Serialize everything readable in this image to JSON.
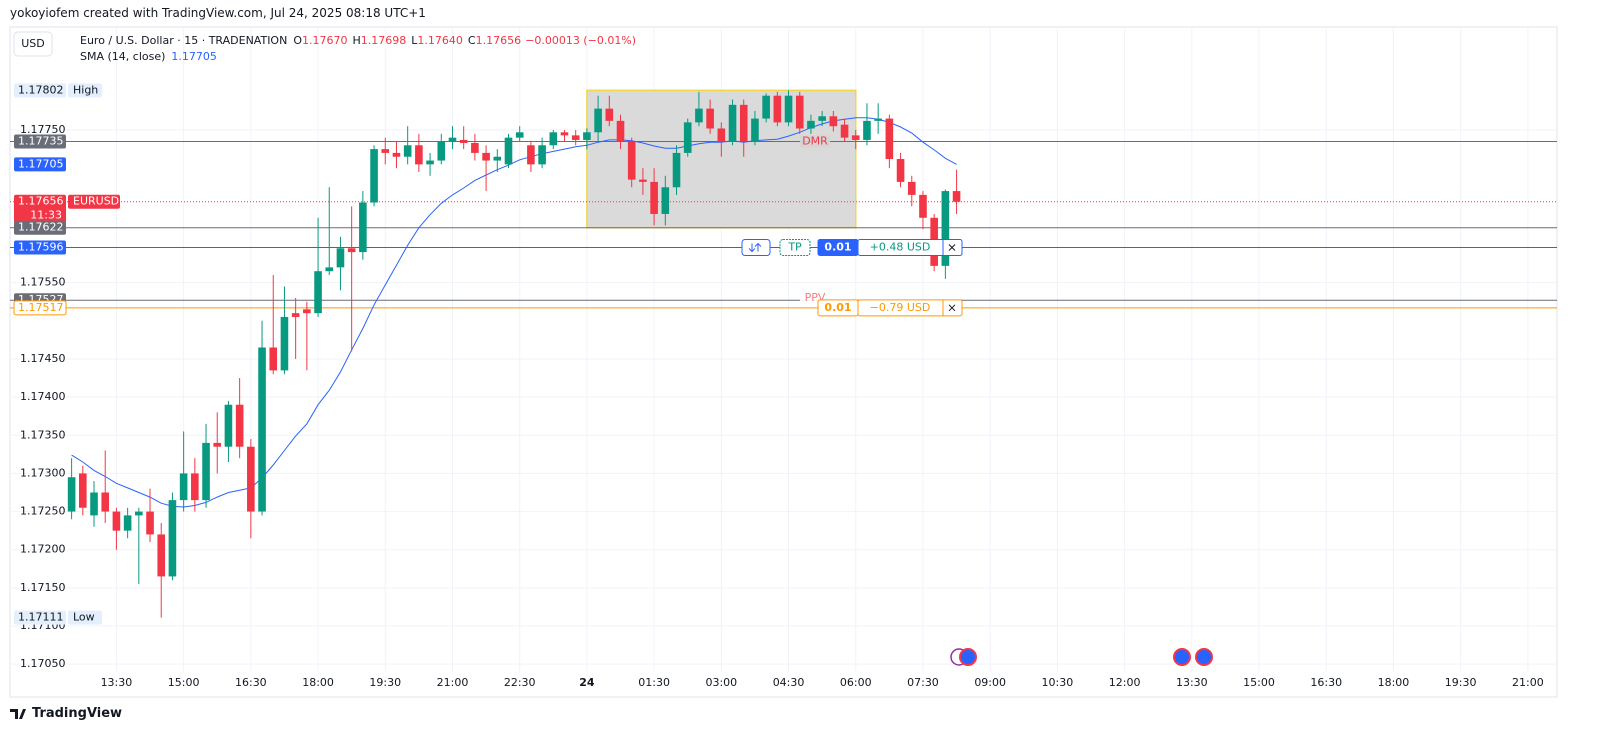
{
  "header": {
    "credit": "yokoyiofem created with TradingView.com, Jul 24, 2025 08:18 UTC+1"
  },
  "footer": {
    "brand": "TradingView"
  },
  "chart_data": {
    "type": "candlestick",
    "currency_button": "USD",
    "legend": {
      "symbol": "Euro / U.S. Dollar · 15 · TRADENATION",
      "ohlc": [
        {
          "key": "O",
          "value": "1.17670"
        },
        {
          "key": "H",
          "value": "1.17698"
        },
        {
          "key": "L",
          "value": "1.17640"
        },
        {
          "key": "C",
          "value": "1.17656"
        }
      ],
      "change": "−0.00013 (−0.01%)"
    },
    "up_color": "#089981",
    "down_color": "#f23645",
    "categories": [
      "12:30",
      "12:45",
      "13:00",
      "13:15",
      "13:30",
      "13:45",
      "14:00",
      "14:15",
      "14:30",
      "14:45",
      "15:00",
      "15:15",
      "15:30",
      "15:45",
      "16:00",
      "16:15",
      "16:30",
      "16:45",
      "17:00",
      "17:15",
      "17:30",
      "17:45",
      "18:00",
      "18:15",
      "18:30",
      "18:45",
      "19:00",
      "19:15",
      "19:30",
      "19:45",
      "20:00",
      "20:15",
      "20:30",
      "20:45",
      "21:00",
      "21:15",
      "21:30",
      "21:45",
      "22:00",
      "22:15",
      "22:30",
      "22:45",
      "23:00",
      "23:15",
      "23:30",
      "23:45",
      "00:00",
      "00:15",
      "00:30",
      "00:45",
      "01:00",
      "01:15",
      "01:30",
      "01:45",
      "02:00",
      "02:15",
      "02:30",
      "02:45",
      "03:00",
      "03:15",
      "03:30",
      "03:45",
      "04:00",
      "04:15",
      "04:30",
      "04:45",
      "05:00",
      "05:15",
      "05:30",
      "05:45",
      "06:00",
      "06:15",
      "06:30",
      "06:45",
      "07:00",
      "07:15",
      "07:30",
      "07:45",
      "08:00",
      "08:15"
    ],
    "open": [
      1.1725,
      1.173,
      1.17245,
      1.17275,
      1.1725,
      1.17225,
      1.17245,
      1.1725,
      1.1722,
      1.17165,
      1.17265,
      1.173,
      1.17265,
      1.1734,
      1.17335,
      1.1739,
      1.17335,
      1.1725,
      1.17465,
      1.17435,
      1.1751,
      1.17515,
      1.1751,
      1.17565,
      1.1757,
      1.17595,
      1.1759,
      1.17655,
      1.17725,
      1.1772,
      1.17715,
      1.1773,
      1.17705,
      1.1771,
      1.17735,
      1.17737,
      1.17733,
      1.1772,
      1.1771,
      1.17705,
      1.1774,
      1.1773,
      1.17705,
      1.1773,
      1.17747,
      1.17743,
      1.17737,
      1.17747,
      1.17778,
      1.17762,
      1.17735,
      1.17685,
      1.17682,
      1.1764,
      1.17675,
      1.1772,
      1.1776,
      1.17778,
      1.17752,
      1.17735,
      1.17783,
      1.17735,
      1.17765,
      1.17795,
      1.1776,
      1.17795,
      1.17752,
      1.17762,
      1.17768,
      1.17757,
      1.17743,
      1.17737,
      1.17762,
      1.17765,
      1.17712,
      1.17682,
      1.17665,
      1.17635,
      1.17572,
      1.1767
    ],
    "high": [
      1.1732,
      1.1731,
      1.1729,
      1.1733,
      1.17255,
      1.17255,
      1.17255,
      1.1728,
      1.17235,
      1.17275,
      1.17355,
      1.1732,
      1.17365,
      1.1738,
      1.17395,
      1.17425,
      1.17345,
      1.175,
      1.1756,
      1.17545,
      1.1753,
      1.17525,
      1.17635,
      1.17675,
      1.1761,
      1.1765,
      1.1767,
      1.1773,
      1.1774,
      1.17735,
      1.17755,
      1.17745,
      1.1772,
      1.17745,
      1.17755,
      1.17755,
      1.17745,
      1.1773,
      1.17725,
      1.17745,
      1.17755,
      1.17735,
      1.1774,
      1.1775,
      1.1775,
      1.1775,
      1.17752,
      1.17795,
      1.17795,
      1.1777,
      1.1774,
      1.177,
      1.177,
      1.1769,
      1.1773,
      1.17765,
      1.178,
      1.1779,
      1.1776,
      1.1779,
      1.1779,
      1.17775,
      1.17798,
      1.178,
      1.17802,
      1.178,
      1.1777,
      1.17775,
      1.17775,
      1.17765,
      1.1775,
      1.17785,
      1.17785,
      1.1777,
      1.1772,
      1.1769,
      1.1767,
      1.1764,
      1.17672,
      1.17698
    ],
    "low": [
      1.1724,
      1.17245,
      1.1723,
      1.17235,
      1.172,
      1.17215,
      1.17155,
      1.1721,
      1.17111,
      1.1716,
      1.1725,
      1.1725,
      1.17255,
      1.173,
      1.17315,
      1.1732,
      1.17215,
      1.17245,
      1.1743,
      1.1743,
      1.1745,
      1.17435,
      1.17505,
      1.1756,
      1.1754,
      1.1746,
      1.1758,
      1.1765,
      1.17705,
      1.177,
      1.17705,
      1.17695,
      1.1769,
      1.17705,
      1.17725,
      1.17725,
      1.1771,
      1.1767,
      1.17695,
      1.177,
      1.17735,
      1.17695,
      1.177,
      1.17725,
      1.17735,
      1.1773,
      1.17725,
      1.17735,
      1.17755,
      1.17725,
      1.17675,
      1.17665,
      1.17625,
      1.17625,
      1.17665,
      1.17715,
      1.17755,
      1.17745,
      1.17715,
      1.1773,
      1.17715,
      1.1773,
      1.1776,
      1.17755,
      1.17755,
      1.17745,
      1.17745,
      1.17755,
      1.17748,
      1.17735,
      1.17725,
      1.1773,
      1.17745,
      1.177,
      1.17675,
      1.1765,
      1.1762,
      1.17565,
      1.17555,
      1.1764
    ],
    "close": [
      1.17295,
      1.17255,
      1.17275,
      1.1725,
      1.17225,
      1.17245,
      1.1725,
      1.1722,
      1.17165,
      1.17265,
      1.173,
      1.17265,
      1.1734,
      1.17335,
      1.1739,
      1.17335,
      1.1725,
      1.17465,
      1.17435,
      1.17505,
      1.17505,
      1.1751,
      1.17565,
      1.1757,
      1.17595,
      1.1759,
      1.17655,
      1.17725,
      1.1772,
      1.17715,
      1.1773,
      1.17705,
      1.1771,
      1.17735,
      1.1774,
      1.17733,
      1.1772,
      1.1771,
      1.17715,
      1.1774,
      1.17747,
      1.17705,
      1.1773,
      1.17747,
      1.17743,
      1.17737,
      1.17747,
      1.17778,
      1.17762,
      1.17735,
      1.17685,
      1.17682,
      1.1764,
      1.17675,
      1.1772,
      1.1776,
      1.17778,
      1.17752,
      1.17735,
      1.17783,
      1.17735,
      1.17765,
      1.17795,
      1.1776,
      1.17795,
      1.17752,
      1.17762,
      1.17768,
      1.17755,
      1.1774,
      1.17737,
      1.17762,
      1.17765,
      1.17712,
      1.17682,
      1.17665,
      1.17635,
      1.17572,
      1.1767,
      1.17656
    ],
    "sma": {
      "name": "SMA (14, close)",
      "color": "#2962ff",
      "values": [
        1.17324,
        1.17315,
        1.17304,
        1.17296,
        1.17287,
        1.17281,
        1.17275,
        1.17269,
        1.17261,
        1.17257,
        1.17256,
        1.17258,
        1.17262,
        1.17269,
        1.17275,
        1.17278,
        1.17281,
        1.17294,
        1.17311,
        1.1733,
        1.17349,
        1.17365,
        1.1739,
        1.17409,
        1.17433,
        1.17462,
        1.1749,
        1.17521,
        1.17547,
        1.17573,
        1.17599,
        1.17622,
        1.17639,
        1.17654,
        1.17665,
        1.17674,
        1.17684,
        1.17691,
        1.17698,
        1.17704,
        1.17711,
        1.17715,
        1.17719,
        1.17722,
        1.17725,
        1.17728,
        1.1773,
        1.17734,
        1.17737,
        1.17737,
        1.17736,
        1.17733,
        1.17729,
        1.17726,
        1.17726,
        1.17729,
        1.17732,
        1.17734,
        1.17734,
        1.17736,
        1.17734,
        1.17736,
        1.17737,
        1.17738,
        1.17742,
        1.17747,
        1.17753,
        1.17758,
        1.17762,
        1.17764,
        1.17766,
        1.17766,
        1.17764,
        1.1776,
        1.17754,
        1.17746,
        1.17734,
        1.17724,
        1.17713,
        1.17705
      ]
    },
    "xlim": [
      -5.5,
      132.6
    ],
    "xticks": [
      {
        "value": 4,
        "label": "13:30"
      },
      {
        "value": 10,
        "label": "15:00"
      },
      {
        "value": 16,
        "label": "16:30"
      },
      {
        "value": 22,
        "label": "18:00"
      },
      {
        "value": 28,
        "label": "19:30"
      },
      {
        "value": 34,
        "label": "21:00"
      },
      {
        "value": 40,
        "label": "22:30"
      },
      {
        "value": 46,
        "label": "24",
        "bold": true
      },
      {
        "value": 52,
        "label": "01:30"
      },
      {
        "value": 58,
        "label": "03:00"
      },
      {
        "value": 64,
        "label": "04:30"
      },
      {
        "value": 70,
        "label": "06:00"
      },
      {
        "value": 76,
        "label": "07:30"
      },
      {
        "value": 82,
        "label": "09:00"
      },
      {
        "value": 88,
        "label": "10:30"
      },
      {
        "value": 94,
        "label": "12:00"
      },
      {
        "value": 100,
        "label": "13:30"
      },
      {
        "value": 106,
        "label": "15:00"
      },
      {
        "value": 112,
        "label": "16:30"
      },
      {
        "value": 118,
        "label": "18:00"
      },
      {
        "value": 124,
        "label": "19:30"
      },
      {
        "value": 130,
        "label": "21:00"
      }
    ],
    "ylim": [
      1.17007,
      1.17885
    ],
    "yticks": [
      {
        "value": 1.1705,
        "label": "1.17050"
      },
      {
        "value": 1.171,
        "label": "1.17100"
      },
      {
        "value": 1.1715,
        "label": "1.17150"
      },
      {
        "value": 1.172,
        "label": "1.17200"
      },
      {
        "value": 1.1725,
        "label": "1.17250"
      },
      {
        "value": 1.173,
        "label": "1.17300"
      },
      {
        "value": 1.1735,
        "label": "1.17350"
      },
      {
        "value": 1.174,
        "label": "1.17400"
      },
      {
        "value": 1.1745,
        "label": "1.17450"
      },
      {
        "value": 1.1755,
        "label": "1.17550"
      },
      {
        "value": 1.1775,
        "label": "1.17750"
      }
    ],
    "grid": true,
    "zone": {
      "start": "00:00",
      "end": "06:00",
      "top": 1.17802,
      "bottom": 1.17622,
      "color": "#d4d4d4",
      "border": "#f0d64a"
    },
    "price_lines": [
      {
        "value": 1.17802,
        "label": "1.17802",
        "tag": "High",
        "badge": "light",
        "color": "#e3effd",
        "line": "none"
      },
      {
        "value": 1.17735,
        "label": "1.17735",
        "badge": "solid",
        "color": "#6a6d78",
        "line": "solid",
        "note": "DMR",
        "note_color": "#f23645"
      },
      {
        "value": 1.17705,
        "label": "1.17705",
        "badge": "solid",
        "color": "#2962ff",
        "line": "none"
      },
      {
        "value": 1.17656,
        "label": "1.17656",
        "tag": "EURUSD",
        "sub": "11:33",
        "badge": "solid",
        "color": "#f23645",
        "line": "dotted"
      },
      {
        "value": 1.17622,
        "label": "1.17622",
        "badge": "solid",
        "color": "#6a6d78",
        "line": "solid"
      },
      {
        "value": 1.17596,
        "label": "1.17596",
        "badge": "solid",
        "color": "#2962ff",
        "line": "solid",
        "order": {
          "tag": "TP",
          "qty": "0.01",
          "pnl": "+0.48 USD",
          "pnl_color": "#089981"
        }
      },
      {
        "value": 1.17527,
        "label": "1.17527",
        "badge": "solid",
        "color": "#6a6d78",
        "line": "solid",
        "note": "PPV",
        "note_color": "#f77c80"
      },
      {
        "value": 1.17517,
        "label": "1.17517",
        "badge": "outline",
        "color": "#ff9800",
        "line": "solid",
        "order": {
          "qty": "0.01",
          "pnl": "−0.79 USD",
          "pnl_color": "#ff9800"
        }
      },
      {
        "value": 1.17111,
        "label": "1.17111",
        "tag": "Low",
        "badge": "light",
        "color": "#e3effd",
        "line": "none"
      }
    ]
  }
}
